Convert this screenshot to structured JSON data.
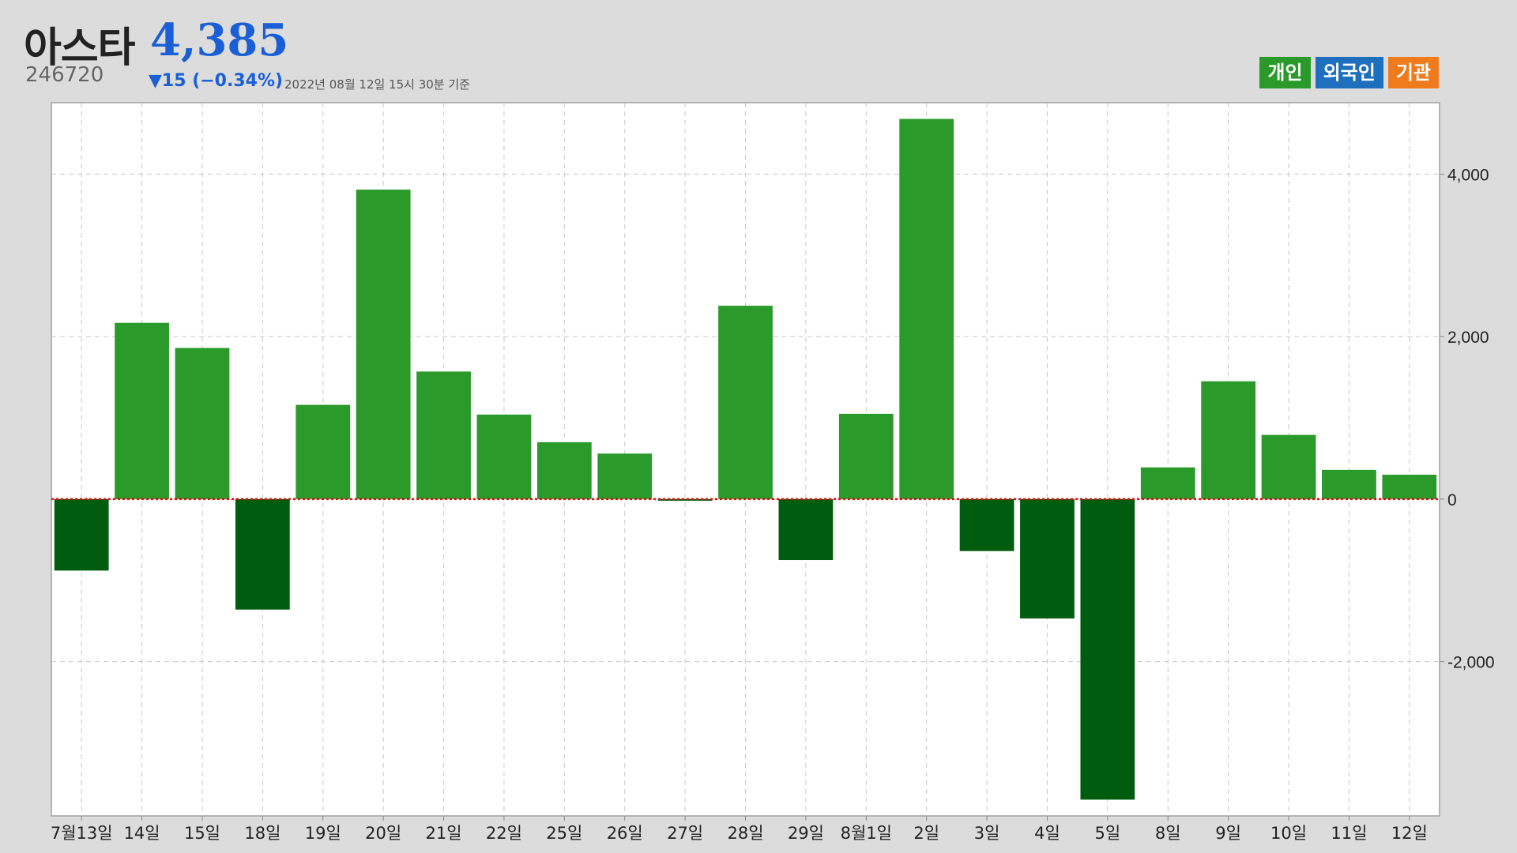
{
  "header": {
    "name": "아스타",
    "price": "4,385",
    "code": "246720",
    "change": "▼15 (−0.34%)",
    "timestamp": "2022년 08월 12일 15시 30분 기준"
  },
  "legend": [
    {
      "label": "개인",
      "color": "#2a9a2a"
    },
    {
      "label": "외국인",
      "color": "#1f6fbf"
    },
    {
      "label": "기관",
      "color": "#f07b1c"
    }
  ],
  "colors": {
    "positive": "#2a9a2a",
    "negative": "#005c0e",
    "zero_line": "#e01010",
    "grid": "#c8c8c8"
  },
  "chart_data": {
    "type": "bar",
    "categories": [
      "7월13일",
      "14일",
      "15일",
      "18일",
      "19일",
      "20일",
      "21일",
      "22일",
      "25일",
      "26일",
      "27일",
      "28일",
      "29일",
      "8월1일",
      "2일",
      "3일",
      "4일",
      "5일",
      "8일",
      "9일",
      "10일",
      "11일",
      "12일"
    ],
    "series": [
      {
        "name": "개인",
        "values": [
          -880,
          2170,
          1860,
          -1360,
          1160,
          3810,
          1570,
          1040,
          700,
          560,
          -20,
          2380,
          -750,
          1050,
          4680,
          -640,
          -1470,
          -3700,
          390,
          1450,
          790,
          360,
          300
        ]
      }
    ],
    "y_ticks": [
      4000,
      2000,
      0,
      -2000
    ],
    "y_tick_labels": [
      "4,000",
      "2,000",
      "0",
      "-2,000"
    ],
    "ylim": [
      -3900,
      4880
    ],
    "grid": true,
    "y_axis_position": "right",
    "legend_position": "top-right"
  }
}
